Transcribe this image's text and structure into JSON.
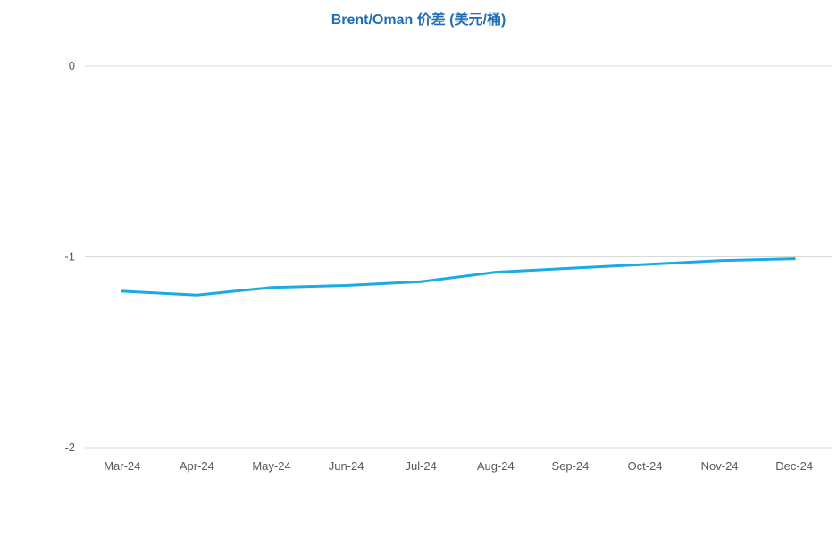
{
  "colors": {
    "title": "#1F6EB5",
    "series": "#1AABE6",
    "grid": "#D9D9D9",
    "text": "#595959"
  },
  "chart_data": {
    "type": "line",
    "title": "Brent/Oman 价差 (美元/桶)",
    "xlabel": "",
    "ylabel": "",
    "categories": [
      "Mar-24",
      "Apr-24",
      "May-24",
      "Jun-24",
      "Jul-24",
      "Aug-24",
      "Sep-24",
      "Oct-24",
      "Nov-24",
      "Dec-24"
    ],
    "series": [
      {
        "values": [
          -1.18,
          -1.2,
          -1.16,
          -1.15,
          -1.13,
          -1.08,
          -1.06,
          -1.04,
          -1.02,
          -1.01
        ]
      }
    ],
    "ylim": [
      -2,
      0
    ],
    "yticks": [
      0,
      -1,
      -2
    ],
    "ytick_labels": [
      "0",
      "-1",
      "-2"
    ],
    "grid": true,
    "legend": "none"
  }
}
